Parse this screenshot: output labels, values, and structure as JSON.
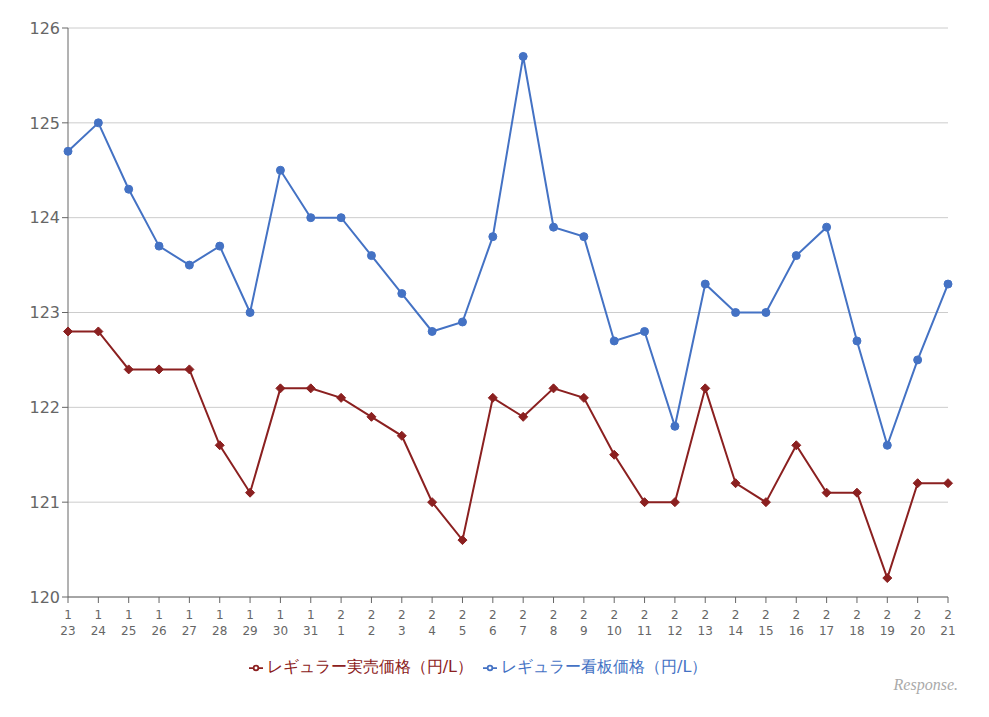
{
  "chart_data": {
    "type": "line",
    "categories": [
      [
        "1",
        "23"
      ],
      [
        "1",
        "24"
      ],
      [
        "1",
        "25"
      ],
      [
        "1",
        "26"
      ],
      [
        "1",
        "27"
      ],
      [
        "1",
        "28"
      ],
      [
        "1",
        "29"
      ],
      [
        "1",
        "30"
      ],
      [
        "1",
        "31"
      ],
      [
        "2",
        "1"
      ],
      [
        "2",
        "2"
      ],
      [
        "2",
        "3"
      ],
      [
        "2",
        "4"
      ],
      [
        "2",
        "5"
      ],
      [
        "2",
        "6"
      ],
      [
        "2",
        "7"
      ],
      [
        "2",
        "8"
      ],
      [
        "2",
        "9"
      ],
      [
        "2",
        "10"
      ],
      [
        "2",
        "11"
      ],
      [
        "2",
        "12"
      ],
      [
        "2",
        "13"
      ],
      [
        "2",
        "14"
      ],
      [
        "2",
        "15"
      ],
      [
        "2",
        "16"
      ],
      [
        "2",
        "17"
      ],
      [
        "2",
        "18"
      ],
      [
        "2",
        "19"
      ],
      [
        "2",
        "20"
      ],
      [
        "2",
        "21"
      ]
    ],
    "series": [
      {
        "name": "レギュラー看板価格（円/L）",
        "color": "#4472C4",
        "marker": "circle",
        "values": [
          124.7,
          125.0,
          124.3,
          123.7,
          123.5,
          123.7,
          123.0,
          124.5,
          124.0,
          124.0,
          123.6,
          123.2,
          122.8,
          122.9,
          123.8,
          125.7,
          123.9,
          123.8,
          122.7,
          122.8,
          121.8,
          123.3,
          123.0,
          123.0,
          123.6,
          123.9,
          122.7,
          121.6,
          122.5,
          123.3
        ]
      },
      {
        "name": "レギュラー実売価格（円/L）",
        "color": "#8B2020",
        "marker": "diamond",
        "values": [
          122.8,
          122.8,
          122.4,
          122.4,
          122.4,
          121.6,
          121.1,
          122.2,
          122.2,
          122.1,
          121.9,
          121.7,
          121.0,
          120.6,
          122.1,
          121.9,
          122.2,
          122.1,
          121.5,
          121.0,
          121.0,
          122.2,
          121.2,
          121.0,
          121.6,
          121.1,
          121.1,
          120.2,
          121.2,
          121.2
        ]
      }
    ],
    "ylim": [
      120,
      126
    ],
    "yticks": [
      120,
      121,
      122,
      123,
      124,
      125,
      126
    ],
    "grid": true,
    "legend": "bottom",
    "annotations": [
      "Response."
    ]
  }
}
